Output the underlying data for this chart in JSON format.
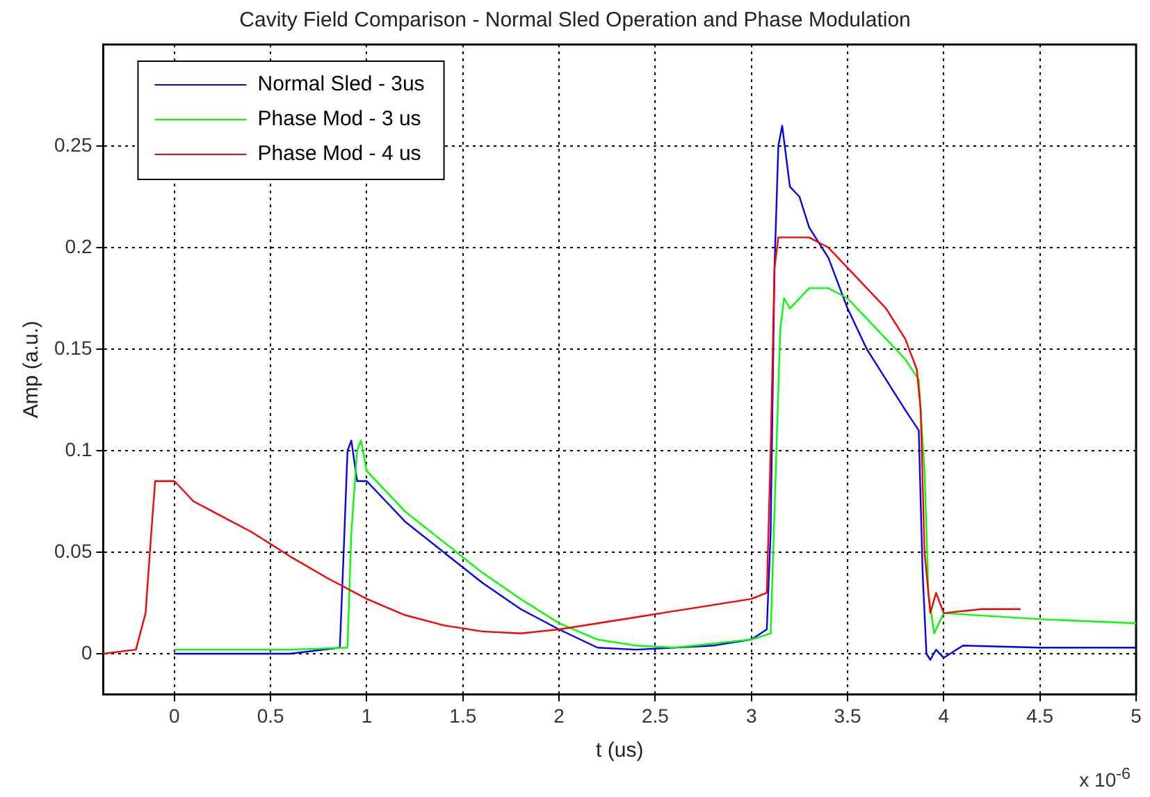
{
  "chart_data": {
    "type": "line",
    "title": "Cavity Field Comparison - Normal Sled Operation and Phase Modulation",
    "xlabel": "t (us)",
    "ylabel": "Amp (a.u.)",
    "annotations": [
      "x 10$^{-6}$"
    ],
    "xlim": [
      -0.37,
      5
    ],
    "xticks": [
      0,
      0.5,
      1,
      1.5,
      2,
      2.5,
      3,
      3.5,
      4,
      4.5,
      5
    ],
    "ylim": [
      -0.02,
      0.3
    ],
    "yticks": [
      0,
      0.05,
      0.1,
      0.15,
      0.2,
      0.25
    ],
    "grid": true,
    "legend": "top left",
    "line_style": "solid",
    "marker": "none",
    "series": [
      {
        "name": "Normal Sled - 3us",
        "color": "#0000ff",
        "x": [
          0,
          0.3,
          0.6,
          0.86,
          0.88,
          0.9,
          0.92,
          0.95,
          1.0,
          1.1,
          1.2,
          1.4,
          1.6,
          1.8,
          2.0,
          2.2,
          2.4,
          2.6,
          2.8,
          3.0,
          3.08,
          3.1,
          3.12,
          3.14,
          3.16,
          3.2,
          3.25,
          3.3,
          3.4,
          3.5,
          3.6,
          3.7,
          3.8,
          3.87,
          3.89,
          3.91,
          3.93,
          3.96,
          4.0,
          4.1,
          4.5,
          5.0
        ],
        "values": [
          0,
          0,
          0,
          0.003,
          0.05,
          0.1,
          0.105,
          0.085,
          0.085,
          0.075,
          0.065,
          0.05,
          0.035,
          0.022,
          0.012,
          0.003,
          0.002,
          0.003,
          0.004,
          0.007,
          0.012,
          0.06,
          0.19,
          0.25,
          0.26,
          0.23,
          0.225,
          0.21,
          0.195,
          0.17,
          0.15,
          0.135,
          0.12,
          0.11,
          0.04,
          0.0,
          -0.003,
          0.002,
          -0.002,
          0.004,
          0.003,
          0.003
        ]
      },
      {
        "name": "Phase Mod - 3 us",
        "color": "#00ff00",
        "x": [
          0,
          0.3,
          0.6,
          0.9,
          0.92,
          0.95,
          0.97,
          1.0,
          1.1,
          1.2,
          1.4,
          1.6,
          1.8,
          2.0,
          2.2,
          2.4,
          2.6,
          2.8,
          3.0,
          3.1,
          3.13,
          3.15,
          3.17,
          3.2,
          3.3,
          3.4,
          3.5,
          3.6,
          3.7,
          3.8,
          3.87,
          3.9,
          3.92,
          3.95,
          4.0,
          4.5,
          5.0
        ],
        "values": [
          0.002,
          0.002,
          0.002,
          0.003,
          0.06,
          0.1,
          0.105,
          0.09,
          0.08,
          0.07,
          0.055,
          0.04,
          0.027,
          0.015,
          0.007,
          0.004,
          0.003,
          0.005,
          0.007,
          0.01,
          0.1,
          0.16,
          0.175,
          0.17,
          0.18,
          0.18,
          0.175,
          0.165,
          0.155,
          0.145,
          0.135,
          0.09,
          0.03,
          0.01,
          0.02,
          0.017,
          0.015
        ]
      },
      {
        "name": "Phase Mod - 4 us",
        "color": "#ff0000",
        "x": [
          -0.37,
          -0.2,
          -0.15,
          -0.12,
          -0.1,
          -0.05,
          0,
          0.1,
          0.2,
          0.4,
          0.6,
          0.8,
          1.0,
          1.2,
          1.4,
          1.6,
          1.8,
          2.0,
          2.2,
          2.4,
          2.6,
          2.8,
          3.0,
          3.08,
          3.1,
          3.12,
          3.14,
          3.2,
          3.3,
          3.4,
          3.5,
          3.6,
          3.7,
          3.8,
          3.86,
          3.88,
          3.9,
          3.93,
          3.96,
          4.0,
          4.2,
          4.4
        ],
        "values": [
          0,
          0.002,
          0.02,
          0.06,
          0.085,
          0.085,
          0.085,
          0.075,
          0.07,
          0.06,
          0.048,
          0.037,
          0.027,
          0.019,
          0.014,
          0.011,
          0.01,
          0.012,
          0.015,
          0.018,
          0.021,
          0.024,
          0.027,
          0.03,
          0.1,
          0.19,
          0.205,
          0.205,
          0.205,
          0.2,
          0.19,
          0.18,
          0.17,
          0.155,
          0.14,
          0.12,
          0.05,
          0.02,
          0.03,
          0.02,
          0.022,
          0.022
        ]
      }
    ]
  }
}
